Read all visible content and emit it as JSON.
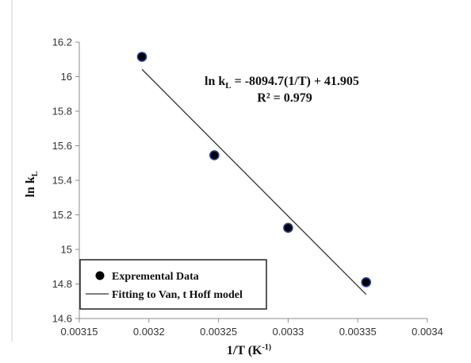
{
  "chart_data": {
    "type": "scatter",
    "title": "",
    "xlabel": "1/T (K",
    "xlabel_sup": "-1)",
    "xlabel_close": ")",
    "ylabel": "ln k",
    "ylabel_sub": "L",
    "xlim": [
      0.00315,
      0.0034
    ],
    "ylim": [
      14.6,
      16.2
    ],
    "x_ticks": [
      "0.00315",
      "0.0032",
      "0.00325",
      "0.0033",
      "0.00335",
      "0.0034"
    ],
    "y_ticks": [
      "14.6",
      "14.8",
      "15",
      "15.2",
      "15.4",
      "15.6",
      "15.8",
      "16",
      "16.2"
    ],
    "grid": false,
    "series": [
      {
        "name": "Expremental Data",
        "kind": "scatter",
        "color": "#000000",
        "edge_color": "#1f3f9a",
        "points": [
          {
            "x": 0.003195,
            "y": 16.115
          },
          {
            "x": 0.003247,
            "y": 15.545
          },
          {
            "x": 0.0033,
            "y": 15.125
          },
          {
            "x": 0.003356,
            "y": 14.81
          }
        ]
      },
      {
        "name": "Fitting to Van, t Hoff  model",
        "kind": "line",
        "color": "#333333",
        "slope": -8094.7,
        "intercept": 41.905,
        "x_range": [
          0.003195,
          0.003356
        ]
      }
    ],
    "annotation": {
      "equation_prefix": "ln k",
      "equation_sub": "L",
      "equation_rest": " = -8094.7(1/T) + 41.905",
      "r_squared": "R² = 0.979"
    },
    "legend": {
      "placement": "bottom-left"
    }
  }
}
